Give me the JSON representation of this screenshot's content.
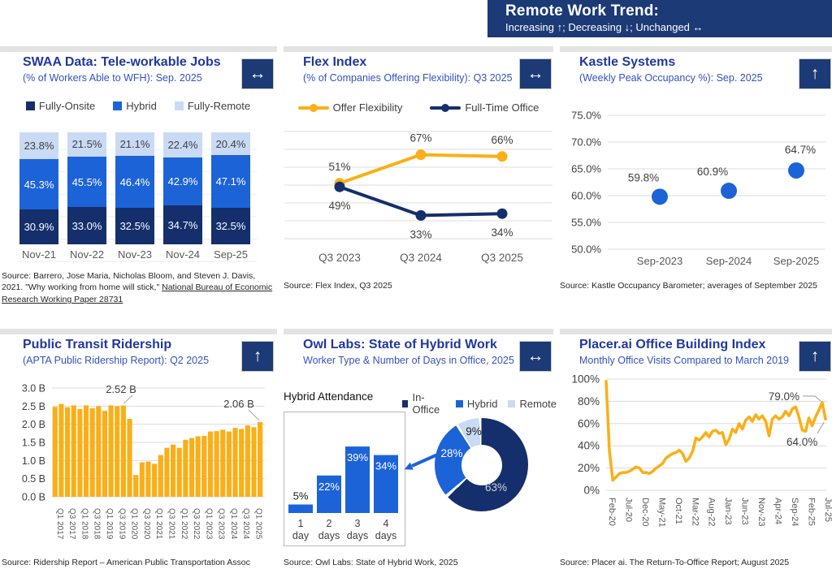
{
  "header": {
    "title": "Remote Work Trend:",
    "subtitle": "Increasing ↑;  Decreasing ↓;  Unchanged ↔"
  },
  "colors": {
    "navy": "#142F6B",
    "header_navy": "#1B3A76",
    "blue": "#1C63D8",
    "light_blue": "#C9DAF5",
    "gold": "#FAAF18",
    "title_blue": "#21389E",
    "subtitle_blue": "#3352BE",
    "grid": "#DCDCDC",
    "axis_text": "#595959",
    "data_label": "#404040"
  },
  "panels": [
    {
      "title": "SWAA Data: Tele-workable Jobs",
      "subtitle": "(% of Workers Able to WFH): Sep. 2025",
      "trend": "↔",
      "source": "Source: Barrero, Jose Maria, Nicholas Bloom, and Steven J. Davis, 2021. \"Why working from home will stick,\" ",
      "source_link": "National Bureau of Economic Research Working Paper 28731"
    },
    {
      "title": "Flex Index",
      "subtitle": "(% of Companies Offering Flexibility): Q3 2025",
      "trend": "↔",
      "source": "Source: Flex Index, Q3 2025"
    },
    {
      "title": "Kastle Systems",
      "subtitle": "(Weekly Peak Occupancy %): Sep. 2025",
      "trend": "↑",
      "source": "Source: Kastle Occupancy Barometer; averages of September 2025"
    },
    {
      "title": "Public Transit Ridership",
      "subtitle": "(APTA Public Ridership Report): Q2 2025",
      "trend": "↑",
      "source": "Source: Ridership Report – American Public Transportation Assoc"
    },
    {
      "title": "Owl Labs: State of Hybrid Work",
      "subtitle": "Worker Type & Number of Days in Office, 2025",
      "trend": "↔",
      "source": "Source: Owl Labs: State of Hybrid Work, 2025"
    },
    {
      "title": "Placer.ai Office Building Index",
      "subtitle": "Monthly Office Visits Compared to March 2019",
      "trend": "↑",
      "source": "Source: Placer ai. The Return-To-Office Report; August 2025"
    }
  ],
  "chart_data": [
    {
      "panel": "swaa",
      "type": "bar",
      "stacked": true,
      "categories": [
        "Nov-21",
        "Nov-22",
        "Nov-23",
        "Nov-24",
        "Sep-25"
      ],
      "series": [
        {
          "name": "Fully-Onsite",
          "color_key": "navy",
          "values": [
            30.9,
            33.0,
            32.5,
            34.7,
            32.5
          ]
        },
        {
          "name": "Hybrid",
          "color_key": "blue",
          "values": [
            45.3,
            45.5,
            46.4,
            42.9,
            47.1
          ]
        },
        {
          "name": "Fully-Remote",
          "color_key": "light_blue",
          "values": [
            23.8,
            21.5,
            21.1,
            22.4,
            20.4
          ]
        }
      ],
      "ylim": [
        0,
        100
      ]
    },
    {
      "panel": "flex",
      "type": "line",
      "categories": [
        "Q3 2023",
        "Q3 2024",
        "Q3 2025"
      ],
      "series": [
        {
          "name": "Offer Flexibility",
          "color_key": "gold",
          "values": [
            51,
            67,
            66
          ],
          "label_pos": "above"
        },
        {
          "name": "Full-Time Office",
          "color_key": "navy",
          "values": [
            49,
            33,
            34
          ],
          "label_pos": "below"
        }
      ],
      "ylim": [
        20,
        80
      ],
      "grid": true
    },
    {
      "panel": "kastle",
      "type": "scatter",
      "categories": [
        "Sep-2023",
        "Sep-2024",
        "Sep-2025"
      ],
      "values": [
        59.8,
        60.9,
        64.7
      ],
      "labels": [
        "59.8%",
        "60.9%",
        "64.7%"
      ],
      "ylim": [
        50,
        75
      ],
      "yticks": [
        "75.0%",
        "70.0%",
        "65.0%",
        "60.0%",
        "55.0%",
        "50.0%"
      ]
    },
    {
      "panel": "transit",
      "type": "bar",
      "categories": [
        "Q1 2017",
        "Q2 2017",
        "Q3 2017",
        "Q4 2017",
        "Q1 2018",
        "Q2 2018",
        "Q3 2018",
        "Q4 2018",
        "Q1 2019",
        "Q2 2019",
        "Q3 2019",
        "Q4 2019",
        "Q1 2020",
        "Q2 2020",
        "Q3 2020",
        "Q4 2020",
        "Q1 2021",
        "Q2 2021",
        "Q3 2021",
        "Q4 2021",
        "Q1 2022",
        "Q2 2022",
        "Q3 2022",
        "Q4 2022",
        "Q1 2023",
        "Q2 2023",
        "Q3 2023",
        "Q4 2023",
        "Q1 2024",
        "Q2 2024",
        "Q3 2024",
        "Q4 2024",
        "Q1 2025",
        "Q2 2025"
      ],
      "values": [
        2.48,
        2.56,
        2.47,
        2.52,
        2.42,
        2.52,
        2.44,
        2.5,
        2.37,
        2.52,
        2.5,
        2.52,
        2.15,
        0.6,
        0.95,
        0.97,
        0.91,
        1.15,
        1.35,
        1.44,
        1.35,
        1.57,
        1.62,
        1.67,
        1.68,
        1.8,
        1.81,
        1.85,
        1.8,
        1.9,
        1.87,
        1.97,
        1.92,
        2.06
      ],
      "ylim": [
        0,
        3
      ],
      "yticks": [
        "3.0 B",
        "2.5 B",
        "2.0 B",
        "1.5 B",
        "1.0 B",
        "0.5 B",
        "0.0 B"
      ],
      "xtick_every": 2,
      "annotations": [
        {
          "text": "2.52 B",
          "index": 11
        },
        {
          "text": "2.06 B",
          "index": 33
        }
      ]
    },
    {
      "panel": "owl_hybrid_attendance",
      "type": "bar",
      "title": "Hybrid Attendance",
      "categories": [
        "1 day",
        "2 days",
        "3 days",
        "4 days"
      ],
      "values": [
        5,
        22,
        39,
        34
      ],
      "labels": [
        "5%",
        "22%",
        "39%",
        "34%"
      ]
    },
    {
      "panel": "owl_worker_type",
      "type": "pie",
      "slices": [
        {
          "name": "In-Office",
          "value": 63,
          "label": "63%",
          "color_key": "navy"
        },
        {
          "name": "Hybrid",
          "value": 28,
          "label": "28%",
          "color_key": "blue"
        },
        {
          "name": "Remote",
          "value": 9,
          "label": "9%",
          "color_key": "light_blue"
        }
      ]
    },
    {
      "panel": "placer",
      "type": "line",
      "x_labels": [
        "Feb-20",
        "Jul-20",
        "Dec-20",
        "May-21",
        "Oct-21",
        "Mar-22",
        "Aug-22",
        "Jan-23",
        "Jun-23",
        "Nov-23",
        "Apr-24",
        "Sep-24",
        "Feb-25",
        "Jul-25"
      ],
      "label_every": 5,
      "values": [
        98,
        35,
        9,
        12,
        15,
        16,
        16,
        17,
        19,
        21,
        20,
        16,
        16,
        15,
        17,
        20,
        22,
        24,
        29,
        31,
        33,
        34,
        36,
        33,
        26,
        29,
        35,
        47,
        45,
        48,
        52,
        48,
        53,
        54,
        51,
        52,
        41,
        46,
        55,
        52,
        60,
        55,
        63,
        66,
        62,
        68,
        64,
        67,
        62,
        49,
        64,
        67,
        64,
        66,
        71,
        67,
        73,
        75,
        66,
        54,
        53,
        65,
        58,
        66,
        72,
        79,
        64
      ],
      "ylim": [
        0,
        100
      ],
      "yticks": [
        "100%",
        "80%",
        "60%",
        "40%",
        "20%",
        "0%"
      ],
      "annotations": [
        {
          "text": "79.0%",
          "index": 65
        },
        {
          "text": "64.0%",
          "index": 66
        }
      ]
    }
  ]
}
